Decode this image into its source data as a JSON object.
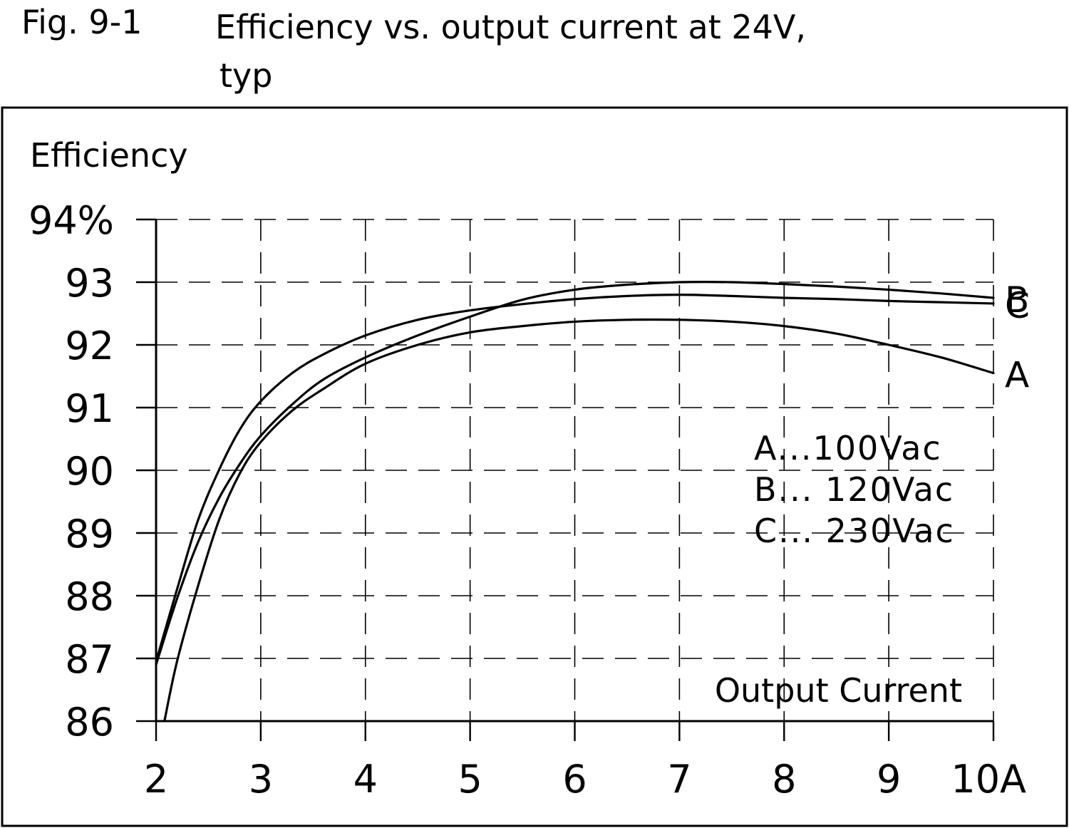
{
  "figure": {
    "number": "Fig. 9-1",
    "title_line1": "Efficiency vs. output current at 24V,",
    "title_line2": "typ"
  },
  "chart_data": {
    "type": "line",
    "ylabel": "Efficiency",
    "xlabel": "Output Current",
    "xlim": [
      2,
      10
    ],
    "ylim": [
      86,
      94
    ],
    "x_ticks": [
      2,
      3,
      4,
      5,
      6,
      7,
      8,
      9,
      10
    ],
    "x_tick_labels": [
      "2",
      "3",
      "4",
      "5",
      "6",
      "7",
      "8",
      "9",
      "10A"
    ],
    "y_ticks": [
      86,
      87,
      88,
      89,
      90,
      91,
      92,
      93,
      94
    ],
    "y_tick_labels": [
      "86",
      "87",
      "88",
      "89",
      "90",
      "91",
      "92",
      "93",
      "94%"
    ],
    "grid": true,
    "legend_position": "right",
    "legend": [
      "A...100Vac",
      "B... 120Vac",
      "C... 230Vac"
    ],
    "series": [
      {
        "name": "A",
        "x": [
          2.08,
          2.2,
          2.4,
          2.6,
          2.8,
          3.0,
          3.3,
          3.6,
          4.0,
          4.5,
          5.0,
          5.5,
          6.0,
          6.5,
          7.0,
          7.5,
          8.0,
          8.5,
          9.0,
          9.5,
          10.0
        ],
        "y": [
          86.0,
          86.95,
          88.15,
          89.2,
          89.95,
          90.45,
          90.95,
          91.3,
          91.7,
          92.0,
          92.2,
          92.3,
          92.37,
          92.4,
          92.4,
          92.37,
          92.3,
          92.18,
          92.0,
          91.8,
          91.55
        ]
      },
      {
        "name": "B",
        "x": [
          2.0,
          2.2,
          2.4,
          2.6,
          2.8,
          3.0,
          3.3,
          3.6,
          4.0,
          4.5,
          5.0,
          5.5,
          6.0,
          6.5,
          7.0,
          7.5,
          8.0,
          8.5,
          9.0,
          9.5,
          10.0
        ],
        "y": [
          86.9,
          87.95,
          88.85,
          89.55,
          90.1,
          90.55,
          91.05,
          91.45,
          91.8,
          92.15,
          92.45,
          92.72,
          92.88,
          92.96,
          93.0,
          93.0,
          92.97,
          92.93,
          92.88,
          92.82,
          92.75
        ]
      },
      {
        "name": "C",
        "x": [
          2.0,
          2.2,
          2.4,
          2.6,
          2.8,
          3.0,
          3.3,
          3.6,
          4.0,
          4.5,
          5.0,
          5.5,
          6.0,
          6.5,
          7.0,
          7.5,
          8.0,
          8.5,
          9.0,
          9.5,
          10.0
        ],
        "y": [
          86.95,
          88.1,
          89.2,
          90.0,
          90.65,
          91.1,
          91.55,
          91.85,
          92.15,
          92.4,
          92.55,
          92.65,
          92.73,
          92.78,
          92.8,
          92.78,
          92.75,
          92.73,
          92.7,
          92.68,
          92.66
        ]
      }
    ]
  }
}
